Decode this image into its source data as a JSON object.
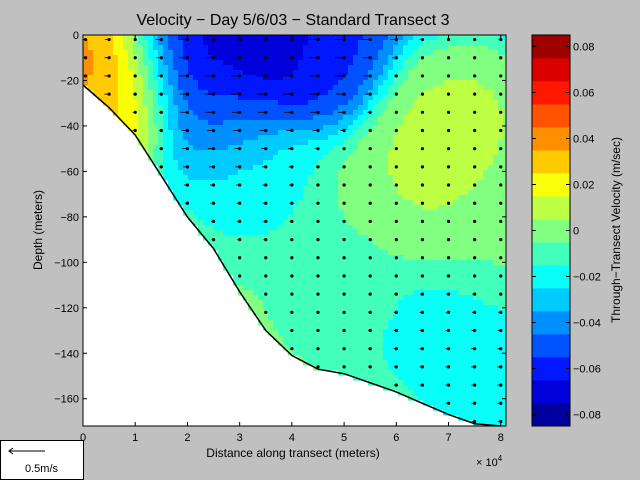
{
  "chart_data": {
    "type": "heatmap",
    "title": "Velocity − Day 5/6/03 − Standard Transect 3",
    "xlabel": "Distance along transect (meters)",
    "ylabel": "Depth (meters)",
    "x_exponent_label": "× 10",
    "x_exponent_power": "4",
    "xlim": [
      0,
      8.1
    ],
    "ylim": [
      -172,
      0
    ],
    "x_ticks": [
      "0",
      "1",
      "2",
      "3",
      "4",
      "5",
      "6",
      "7",
      "8"
    ],
    "y_ticks": [
      "0",
      "−20",
      "−40",
      "−60",
      "−80",
      "−100",
      "−120",
      "−140",
      "−160"
    ],
    "colorbar": {
      "label": "Through−Transect Velocity (m/sec)",
      "range": [
        -0.085,
        0.085
      ],
      "ticks": [
        "0.08",
        "0.06",
        "0.04",
        "0.02",
        "0",
        "−0.02",
        "−0.04",
        "−0.06",
        "−0.08"
      ]
    },
    "bottom_profile": [
      {
        "x": 0,
        "depth": -22
      },
      {
        "x": 0.5,
        "depth": -32
      },
      {
        "x": 1,
        "depth": -44
      },
      {
        "x": 1.5,
        "depth": -62
      },
      {
        "x": 2,
        "depth": -80
      },
      {
        "x": 2.5,
        "depth": -94
      },
      {
        "x": 3,
        "depth": -113
      },
      {
        "x": 3.5,
        "depth": -130
      },
      {
        "x": 4,
        "depth": -141
      },
      {
        "x": 4.5,
        "depth": -147
      },
      {
        "x": 5,
        "depth": -149
      },
      {
        "x": 5.5,
        "depth": -153
      },
      {
        "x": 6,
        "depth": -157
      },
      {
        "x": 6.5,
        "depth": -162
      },
      {
        "x": 7,
        "depth": -167
      },
      {
        "x": 7.5,
        "depth": -171
      },
      {
        "x": 8,
        "depth": -172
      }
    ],
    "velocity_features": [
      {
        "x": 0.1,
        "depth": -10,
        "value": 0.05
      },
      {
        "x": 0.15,
        "depth": -18,
        "value": 0.045
      },
      {
        "x": 0.6,
        "depth": -15,
        "value": 0.03
      },
      {
        "x": 0.7,
        "depth": -28,
        "value": 0.025
      },
      {
        "x": 1.6,
        "depth": -8,
        "value": -0.055
      },
      {
        "x": 2.3,
        "depth": -8,
        "value": -0.075
      },
      {
        "x": 3.0,
        "depth": -6,
        "value": -0.08
      },
      {
        "x": 3.8,
        "depth": -6,
        "value": -0.075
      },
      {
        "x": 4.6,
        "depth": -8,
        "value": -0.06
      },
      {
        "x": 2.5,
        "depth": -25,
        "value": -0.055
      },
      {
        "x": 2.7,
        "depth": -40,
        "value": -0.04
      },
      {
        "x": 3.2,
        "depth": -65,
        "value": -0.02
      },
      {
        "x": 6.8,
        "depth": -45,
        "value": 0.01
      },
      {
        "x": 7.4,
        "depth": -30,
        "value": 0.008
      },
      {
        "x": 6.4,
        "depth": -70,
        "value": 0.006
      },
      {
        "x": 5.0,
        "depth": -110,
        "value": -0.01
      },
      {
        "x": 6.5,
        "depth": -130,
        "value": -0.02
      },
      {
        "x": 7.7,
        "depth": -150,
        "value": -0.025
      }
    ],
    "velocity_background": -0.003,
    "velocity_surface": -0.035,
    "arrow_columns_x": [
      0.05,
      0.5,
      1,
      1.5,
      2,
      2.5,
      3,
      3.5,
      4,
      4.5,
      5,
      5.5,
      6,
      6.5,
      7,
      7.5,
      8
    ],
    "arrow_depth_spacing": 8,
    "arrow_scale": {
      "label": "0.5m/s",
      "value": 0.5
    }
  }
}
